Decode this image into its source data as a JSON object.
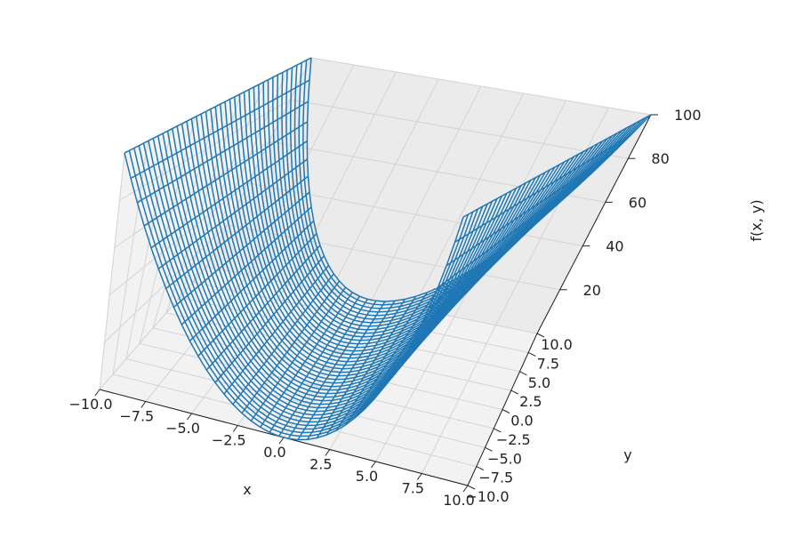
{
  "chart_data": {
    "type": "surface-wireframe",
    "function": "f(x, y) = x^2",
    "xlabel": "x",
    "ylabel": "y",
    "zlabel": "f(x, y)",
    "xlim": [
      -10,
      10
    ],
    "ylim": [
      -10,
      10
    ],
    "zlim": [
      0,
      100
    ],
    "x_ticks": [
      "−10.0",
      "−7.5",
      "−5.0",
      "−2.5",
      "0.0",
      "2.5",
      "5.0",
      "7.5",
      "10.0"
    ],
    "y_ticks": [
      "−10.0",
      "−7.5",
      "−5.0",
      "−2.5",
      "0.0",
      "2.5",
      "5.0",
      "7.5",
      "10.0"
    ],
    "z_ticks": [
      "20",
      "40",
      "60",
      "80",
      "100"
    ],
    "x_tick_values": [
      -10,
      -7.5,
      -5,
      -2.5,
      0,
      2.5,
      5,
      7.5,
      10
    ],
    "y_tick_values": [
      -10,
      -7.5,
      -5,
      -2.5,
      0,
      2.5,
      5,
      7.5,
      10
    ],
    "z_tick_values": [
      20,
      40,
      60,
      80,
      100
    ],
    "grid_points_per_axis": 40,
    "wire_color": "#1f77b4",
    "pane_color": "#f2f2f2",
    "grid": true
  }
}
